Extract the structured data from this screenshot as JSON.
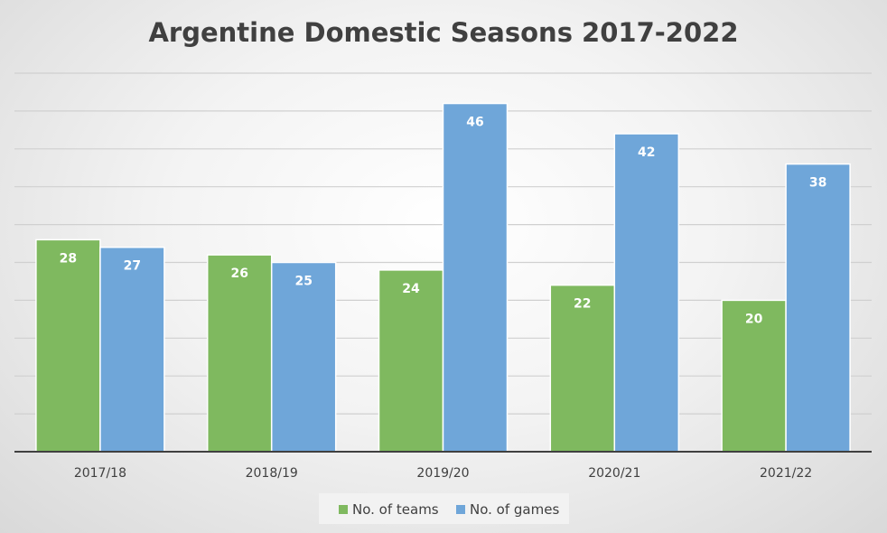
{
  "chart_data": {
    "type": "bar",
    "title": "Argentine Domestic Seasons 2017-2022",
    "categories": [
      "2017/18",
      "2018/19",
      "2019/20",
      "2020/21",
      "2021/22"
    ],
    "series": [
      {
        "name": "No. of teams",
        "values": [
          28,
          26,
          24,
          22,
          20
        ],
        "color": "#7fb95f"
      },
      {
        "name": "No. of games",
        "values": [
          27,
          25,
          46,
          42,
          38
        ],
        "color": "#6fa6d9"
      }
    ],
    "xlabel": "",
    "ylabel": "",
    "ylim": [
      0,
      50
    ],
    "grid": true,
    "legend_position": "bottom",
    "data_labels": true
  }
}
